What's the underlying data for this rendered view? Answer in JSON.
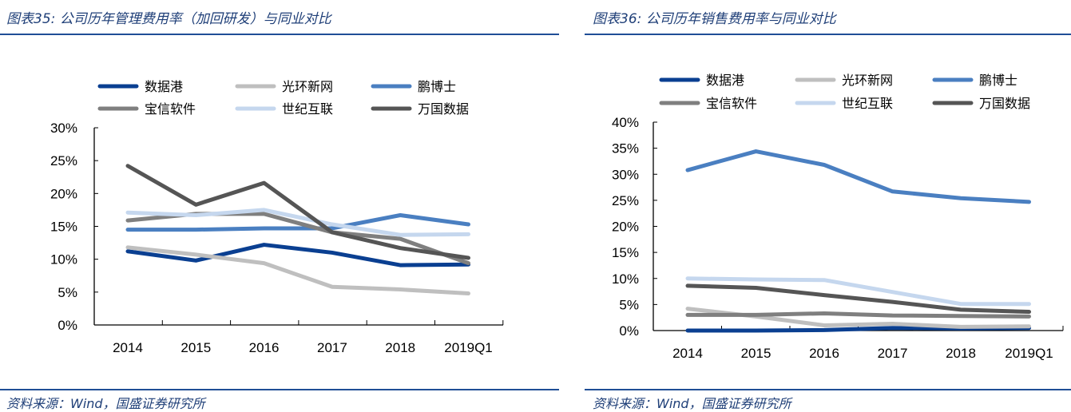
{
  "panels": [
    {
      "title": "图表35: 公司历年管理费用率（加回研发）与同业对比",
      "source": "资料来源：Wind，国盛证券研究所"
    },
    {
      "title": "图表36: 公司历年销售费用率与同业对比",
      "source": "资料来源：Wind，国盛证券研究所"
    }
  ],
  "chart_data": [
    {
      "type": "line",
      "title": "图表35: 公司历年管理费用率（加回研发）与同业对比",
      "categories": [
        "2014",
        "2015",
        "2016",
        "2017",
        "2018",
        "2019Q1"
      ],
      "ylim": [
        0,
        30
      ],
      "yticks": [
        "0%",
        "5%",
        "10%",
        "15%",
        "20%",
        "25%",
        "30%"
      ],
      "ytick_values": [
        0,
        5,
        10,
        15,
        20,
        25,
        30
      ],
      "legend": "top",
      "grid": false,
      "series": [
        {
          "name": "数据港",
          "color": "#0a3f91",
          "values": [
            11.2,
            9.8,
            12.2,
            11.0,
            9.1,
            9.2
          ]
        },
        {
          "name": "光环新网",
          "color": "#bfbfbf",
          "values": [
            11.8,
            10.7,
            9.4,
            5.8,
            5.4,
            4.8
          ]
        },
        {
          "name": "鹏博士",
          "color": "#4a7fc1",
          "values": [
            14.5,
            14.5,
            14.7,
            14.7,
            16.7,
            15.3
          ]
        },
        {
          "name": "宝信软件",
          "color": "#7f7f7f",
          "values": [
            15.9,
            16.9,
            16.9,
            14.1,
            13.1,
            9.4
          ]
        },
        {
          "name": "世纪互联",
          "color": "#c5d7ee",
          "values": [
            17.1,
            16.7,
            17.5,
            15.3,
            13.7,
            13.8
          ]
        },
        {
          "name": "万国数据",
          "color": "#555555",
          "values": [
            24.2,
            18.3,
            21.6,
            14.1,
            11.7,
            10.2
          ]
        }
      ]
    },
    {
      "type": "line",
      "title": "图表36: 公司历年销售费用率与同业对比",
      "categories": [
        "2014",
        "2015",
        "2016",
        "2017",
        "2018",
        "2019Q1"
      ],
      "ylim": [
        0,
        40
      ],
      "yticks": [
        "0%",
        "5%",
        "10%",
        "15%",
        "20%",
        "25%",
        "30%",
        "35%",
        "40%"
      ],
      "ytick_values": [
        0,
        5,
        10,
        15,
        20,
        25,
        30,
        35,
        40
      ],
      "legend": "top",
      "grid": false,
      "series": [
        {
          "name": "数据港",
          "color": "#0a3f91",
          "values": [
            0.0,
            0.0,
            0.1,
            0.5,
            0.4,
            0.5
          ]
        },
        {
          "name": "光环新网",
          "color": "#bfbfbf",
          "values": [
            4.2,
            2.7,
            1.0,
            1.3,
            0.7,
            0.8
          ]
        },
        {
          "name": "鹏博士",
          "color": "#4a7fc1",
          "values": [
            30.8,
            34.4,
            31.8,
            26.7,
            25.4,
            24.7
          ]
        },
        {
          "name": "宝信软件",
          "color": "#7f7f7f",
          "values": [
            3.0,
            3.0,
            3.3,
            2.9,
            2.8,
            2.7
          ]
        },
        {
          "name": "世纪互联",
          "color": "#c5d7ee",
          "values": [
            10.0,
            9.8,
            9.7,
            7.4,
            5.1,
            5.1
          ]
        },
        {
          "name": "万国数据",
          "color": "#555555",
          "values": [
            8.6,
            8.2,
            6.8,
            5.5,
            4.0,
            3.6
          ]
        }
      ]
    }
  ]
}
